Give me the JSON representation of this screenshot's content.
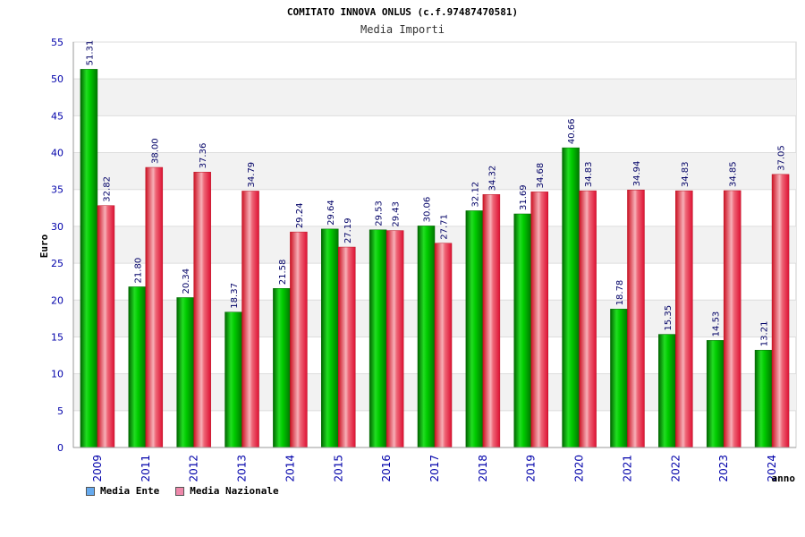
{
  "chart_data": {
    "type": "bar",
    "title": "COMITATO INNOVA ONLUS (c.f.97487470581)",
    "subtitle": "Media Importi",
    "xlabel": "anno",
    "ylabel": "Euro",
    "ylim": [
      0,
      55
    ],
    "yticks": [
      0,
      5,
      10,
      15,
      20,
      25,
      30,
      35,
      40,
      45,
      50,
      55
    ],
    "categories": [
      "2009",
      "2011",
      "2012",
      "2013",
      "2014",
      "2015",
      "2016",
      "2017",
      "2018",
      "2019",
      "2020",
      "2021",
      "2022",
      "2023",
      "2024"
    ],
    "series": [
      {
        "name": "Media Ente",
        "color": "#00aa00",
        "legend_color": "#66aaee",
        "values": [
          51.31,
          21.8,
          20.34,
          18.37,
          21.58,
          29.64,
          29.53,
          30.06,
          32.12,
          31.69,
          40.66,
          18.78,
          15.35,
          14.53,
          13.21
        ],
        "labels": [
          "51.31",
          "21.80",
          "20.34",
          "18.37",
          "21.58",
          "29.64",
          "29.53",
          "30.06",
          "32.12",
          "31.69",
          "40.66",
          "18.78",
          "15.35",
          "14.53",
          "13.21"
        ]
      },
      {
        "name": "Media Nazionale",
        "color": "#ee2233",
        "legend_color": "#ee88aa",
        "values": [
          32.82,
          38.0,
          37.36,
          34.79,
          29.24,
          27.19,
          29.43,
          27.71,
          34.32,
          34.68,
          34.83,
          34.94,
          34.83,
          34.85,
          37.05
        ],
        "labels": [
          "32.82",
          "38.00",
          "37.36",
          "34.79",
          "29.24",
          "27.19",
          "29.43",
          "27.71",
          "34.32",
          "34.68",
          "34.83",
          "34.94",
          "34.83",
          "34.85",
          "37.05"
        ]
      }
    ],
    "grid": true,
    "legend_position": "bottom-left"
  }
}
